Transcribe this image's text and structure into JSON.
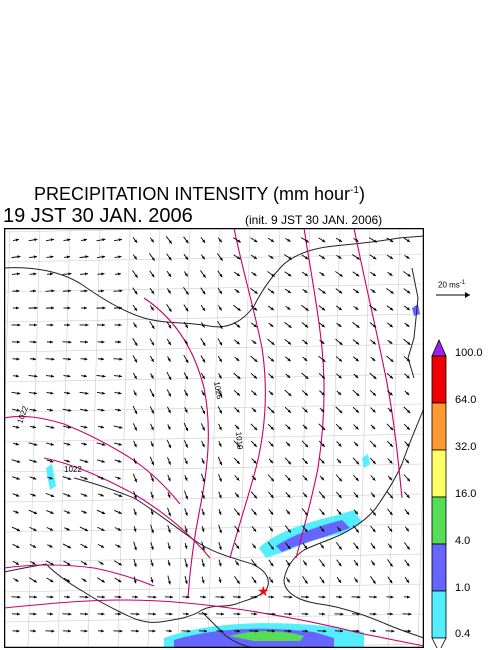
{
  "title": {
    "prefix": "PRECIPITATION INTENSITY (mm hour",
    "exponent": "-1",
    "suffix": ")"
  },
  "time_label": "19 JST 30 JAN. 2006",
  "init_label": "(init. 9 JST 30 JAN. 2006)",
  "reference_vector": {
    "value_text": "20 ms",
    "exponent": "-1"
  },
  "pressure_labels": [
    "1022",
    "1026",
    "1019",
    "1022"
  ],
  "legend": {
    "labels": [
      "100.0",
      "64.0",
      "32.0",
      "16.0",
      "4.0",
      "1.0",
      "0.4"
    ],
    "colors": [
      "#a020f0",
      "#ee0000",
      "#ff9933",
      "#ffff66",
      "#55dd55",
      "#6666ff",
      "#55eeff",
      "#ffffff"
    ]
  },
  "colors": {
    "isobar": "#cc0066",
    "coast": "#222222",
    "grid": "#cccccc",
    "vector": "#000000",
    "marker": "#ff0000"
  }
}
